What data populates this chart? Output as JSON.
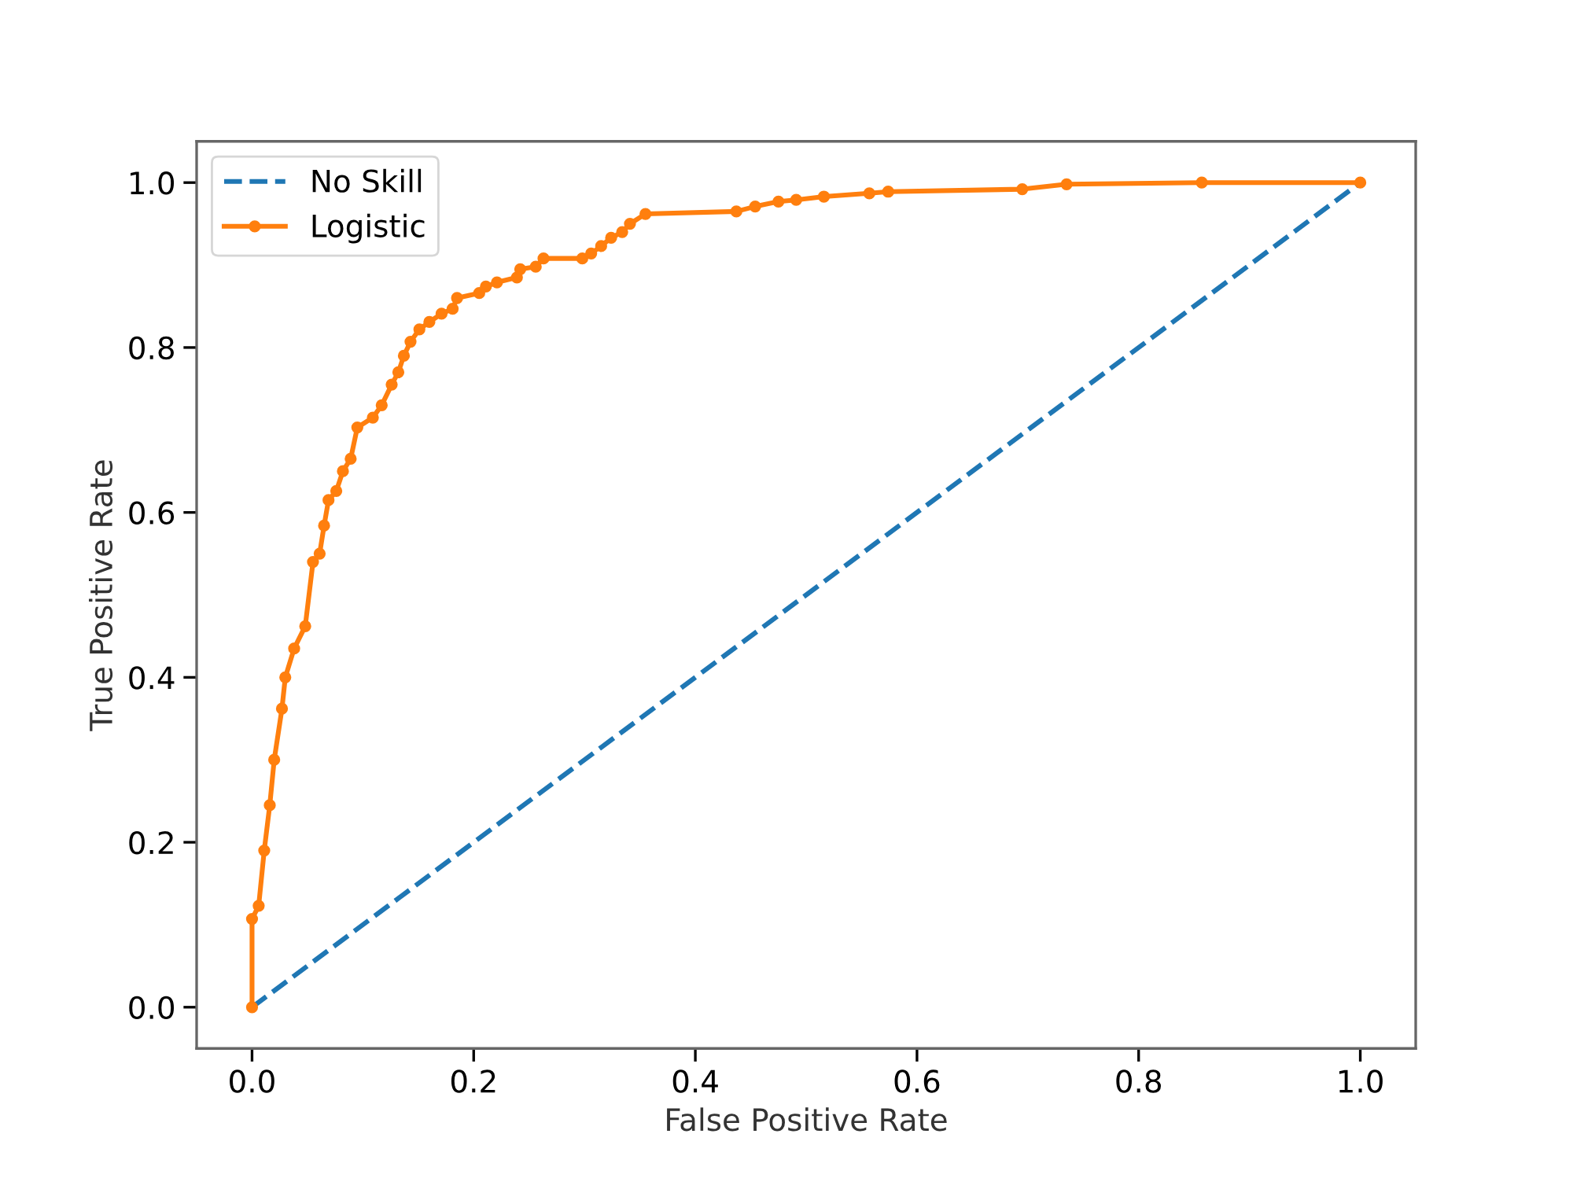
{
  "chart_data": {
    "type": "line",
    "xlabel": "False Positive Rate",
    "ylabel": "True Positive Rate",
    "xlim": [
      -0.05,
      1.05
    ],
    "ylim": [
      -0.05,
      1.05
    ],
    "xticks": [
      {
        "value": 0,
        "label": "0.0"
      },
      0.2,
      0.4,
      0.6,
      0.8,
      {
        "value": 1,
        "label": "1.0"
      }
    ],
    "yticks": [
      {
        "value": 0,
        "label": "0.0"
      },
      0.2,
      0.4,
      0.6,
      0.8,
      {
        "value": 1,
        "label": "1.0"
      }
    ],
    "grid": false,
    "legend": "top left",
    "series": [
      {
        "name": "No Skill",
        "color": "#1f77b4",
        "line_style": "dashed",
        "marker": "none",
        "x": [
          0,
          1
        ],
        "values": [
          0,
          1
        ]
      },
      {
        "name": "Logistic",
        "color": "#ff7f0e",
        "line_style": "solid",
        "marker": "circle",
        "x": [
          0,
          0,
          0.006,
          0.011,
          0.016,
          0.02,
          0.027,
          0.03,
          0.038,
          0.048,
          0.055,
          0.061,
          0.065,
          0.069,
          0.076,
          0.082,
          0.089,
          0.095,
          0.109,
          0.117,
          0.126,
          0.132,
          0.137,
          0.143,
          0.151,
          0.16,
          0.171,
          0.181,
          0.185,
          0.205,
          0.211,
          0.221,
          0.239,
          0.242,
          0.256,
          0.263,
          0.298,
          0.306,
          0.315,
          0.324,
          0.334,
          0.341,
          0.355,
          0.437,
          0.454,
          0.475,
          0.491,
          0.516,
          0.557,
          0.574,
          0.695,
          0.735,
          0.857,
          1
        ],
        "values": [
          0,
          0.107,
          0.123,
          0.19,
          0.245,
          0.3,
          0.362,
          0.4,
          0.435,
          0.462,
          0.54,
          0.55,
          0.584,
          0.615,
          0.626,
          0.65,
          0.665,
          0.703,
          0.715,
          0.73,
          0.755,
          0.77,
          0.79,
          0.807,
          0.822,
          0.831,
          0.841,
          0.847,
          0.86,
          0.866,
          0.874,
          0.879,
          0.885,
          0.895,
          0.898,
          0.908,
          0.908,
          0.914,
          0.923,
          0.933,
          0.94,
          0.95,
          0.962,
          0.965,
          0.971,
          0.977,
          0.979,
          0.983,
          0.987,
          0.989,
          0.992,
          0.998,
          1,
          1
        ]
      }
    ]
  }
}
